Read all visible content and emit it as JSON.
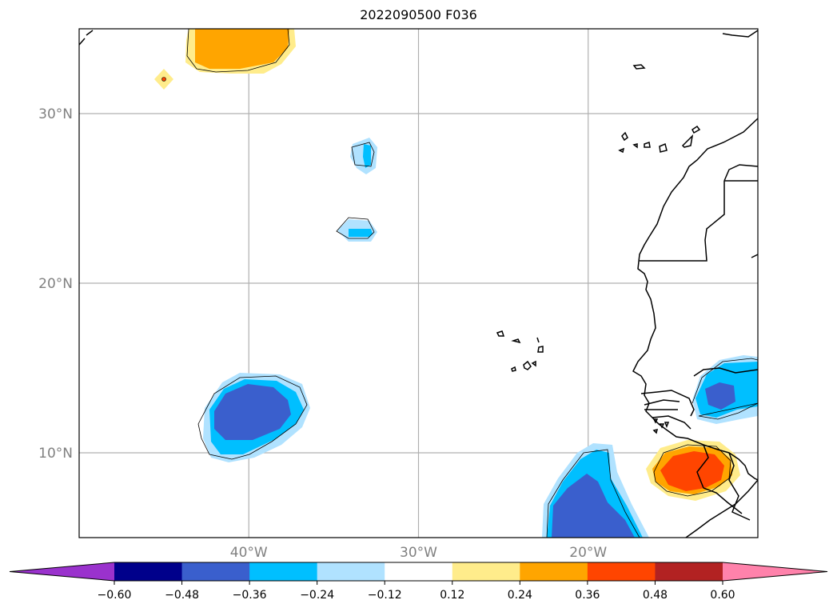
{
  "title": "2022090500 F036",
  "map": {
    "projection": "PlateCarree",
    "lon_range": [
      -50,
      -10
    ],
    "lat_range": [
      5,
      35
    ],
    "gridlines": true,
    "lat_ticks": [
      {
        "value": 30,
        "label": "30°N"
      },
      {
        "value": 20,
        "label": "20°N"
      },
      {
        "value": 10,
        "label": "10°N"
      }
    ],
    "lon_ticks": [
      {
        "value": -40,
        "label": "40°W"
      },
      {
        "value": -30,
        "label": "30°W"
      },
      {
        "value": -20,
        "label": "20°W"
      }
    ]
  },
  "colorbar": {
    "orientation": "horizontal",
    "extend": "both",
    "colors": [
      "#9a32cd",
      "#00008b",
      "#3a5fcd",
      "#00bfff",
      "#b0e2ff",
      "#ffffff",
      "#ffec8b",
      "#ffa500",
      "#ff4500",
      "#b22222",
      "#ff82ab"
    ],
    "levels": [
      -0.6,
      -0.48,
      -0.36,
      -0.24,
      -0.12,
      0.12,
      0.24,
      0.36,
      0.48,
      0.6
    ],
    "labels": [
      "−0.60",
      "−0.48",
      "−0.36",
      "−0.24",
      "−0.12",
      "0.12",
      "0.24",
      "0.36",
      "0.48",
      "0.60"
    ]
  }
}
